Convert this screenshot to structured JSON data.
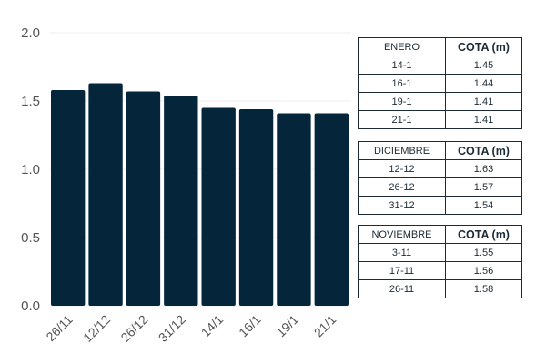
{
  "chart_data": {
    "type": "bar",
    "categories": [
      "26/11",
      "12/12",
      "26/12",
      "31/12",
      "14/1",
      "16/1",
      "19/1",
      "21/1"
    ],
    "values": [
      1.58,
      1.63,
      1.57,
      1.54,
      1.45,
      1.44,
      1.41,
      1.41
    ],
    "ylim": [
      0,
      2.0
    ],
    "yticks": [
      "0.0",
      "0.5",
      "1.0",
      "1.5",
      "2.0"
    ],
    "grid": true,
    "bar_color": "#05263a"
  },
  "tables": [
    {
      "header": "ENERO",
      "value_header": "COTA (m)",
      "rows": [
        [
          "14-1",
          "1.45"
        ],
        [
          "16-1",
          "1.44"
        ],
        [
          "19-1",
          "1.41"
        ],
        [
          "21-1",
          "1.41"
        ]
      ]
    },
    {
      "header": "DICIEMBRE",
      "value_header": "COTA (m)",
      "rows": [
        [
          "12-12",
          "1.63"
        ],
        [
          "26-12",
          "1.57"
        ],
        [
          "31-12",
          "1.54"
        ]
      ]
    },
    {
      "header": "NOVIEMBRE",
      "value_header": "COTA (m)",
      "rows": [
        [
          "3-11",
          "1.55"
        ],
        [
          "17-11",
          "1.56"
        ],
        [
          "26-11",
          "1.58"
        ]
      ]
    }
  ]
}
